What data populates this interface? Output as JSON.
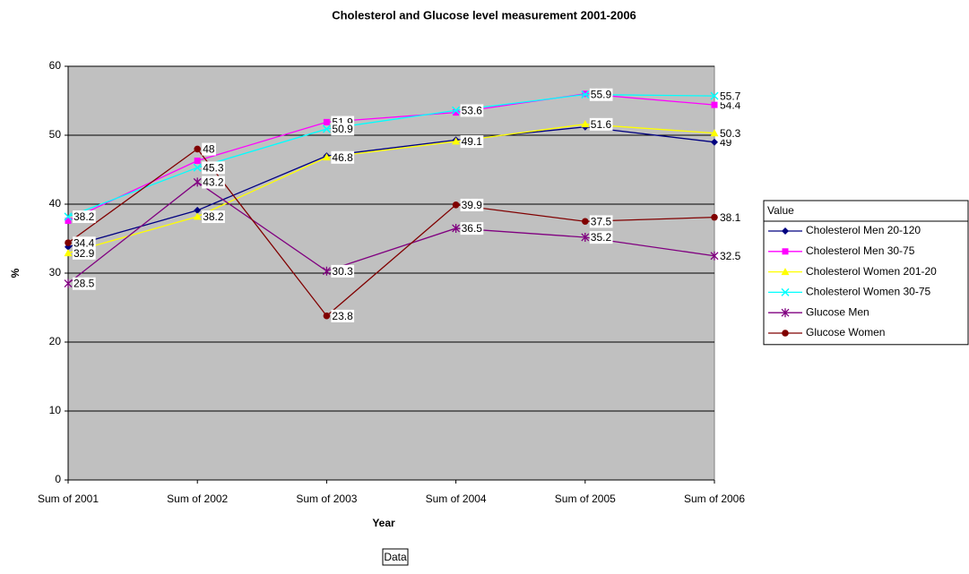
{
  "chart_data": {
    "type": "line",
    "title": "Cholesterol and Glucose level measurement 2001-2006",
    "x_label": "Year",
    "y_label": "%",
    "categories": [
      "Sum of 2001",
      "Sum of 2002",
      "Sum of 2003",
      "Sum of 2004",
      "Sum of 2005",
      "Sum of 2006"
    ],
    "ylim": [
      0,
      60
    ],
    "yticks": [
      0,
      10,
      20,
      30,
      40,
      50,
      60
    ],
    "grid": true,
    "legend_title": "Value",
    "legend_position": "right",
    "field_button": "Data",
    "series": [
      {
        "name": "Cholesterol Men 20-120",
        "color": "#000080",
        "marker": "diamond",
        "values": [
          33.8,
          39.1,
          47.0,
          49.3,
          51.2,
          49
        ],
        "value_labels": [
          null,
          null,
          null,
          null,
          null,
          "49"
        ]
      },
      {
        "name": "Cholesterol Men 30-75",
        "color": "#ff00ff",
        "marker": "square",
        "values": [
          37.6,
          46.3,
          51.9,
          53.3,
          56.0,
          54.4
        ],
        "value_labels": [
          null,
          null,
          "51.9",
          null,
          null,
          "54.4"
        ]
      },
      {
        "name": "Cholesterol Women 201-20",
        "color": "#ffff00",
        "marker": "triangle",
        "values": [
          32.9,
          38.2,
          46.8,
          49.1,
          51.6,
          50.3
        ]
      },
      {
        "name": "Cholesterol Women 30-75",
        "color": "#00ffff",
        "marker": "x",
        "values": [
          38.2,
          45.3,
          50.9,
          53.6,
          55.9,
          55.7
        ]
      },
      {
        "name": "Glucose Men",
        "color": "#800080",
        "marker": "star",
        "values": [
          28.5,
          43.2,
          30.3,
          36.5,
          35.2,
          32.5
        ]
      },
      {
        "name": "Glucose Women",
        "color": "#800000",
        "marker": "circle",
        "values": [
          34.4,
          48,
          23.8,
          39.9,
          37.5,
          38.1
        ]
      }
    ]
  }
}
